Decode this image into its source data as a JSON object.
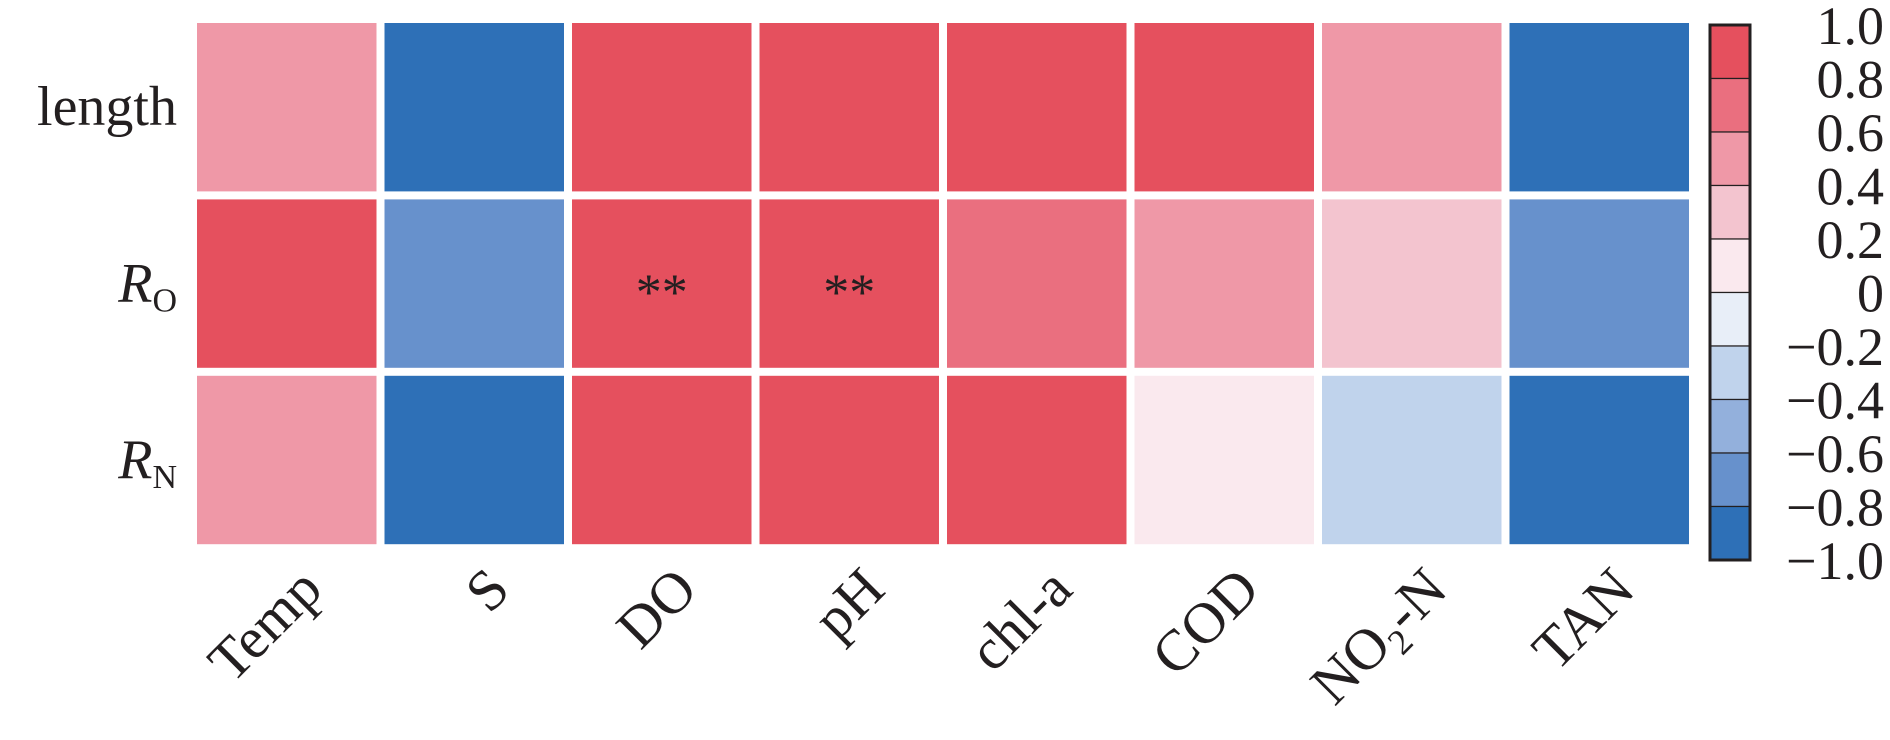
{
  "chart_data": {
    "type": "heatmap",
    "title": "",
    "xlabel": "",
    "ylabel": "",
    "rows": [
      {
        "label": "length",
        "sub": ""
      },
      {
        "label": "R",
        "sub": "O"
      },
      {
        "label": "R",
        "sub": "N"
      }
    ],
    "columns": [
      {
        "label": "Temp"
      },
      {
        "label": "S"
      },
      {
        "label": "DO"
      },
      {
        "label": "pH"
      },
      {
        "label": "chl-a"
      },
      {
        "label": "COD"
      },
      {
        "label": "NO2-N",
        "parts": [
          "NO",
          "2",
          "-N"
        ]
      },
      {
        "label": "TAN"
      }
    ],
    "values": [
      [
        0.5,
        -1.0,
        1.0,
        1.0,
        1.0,
        1.0,
        0.5,
        -1.0
      ],
      [
        1.0,
        -0.7,
        1.0,
        1.0,
        0.7,
        0.5,
        0.3,
        -0.7
      ],
      [
        0.5,
        -1.0,
        1.0,
        1.0,
        1.0,
        0.1,
        -0.3,
        -1.0
      ]
    ],
    "significance": [
      [
        "",
        "",
        "",
        "",
        "",
        "",
        "",
        ""
      ],
      [
        "",
        "",
        "**",
        "**",
        "",
        "",
        "",
        ""
      ],
      [
        "",
        "",
        "",
        "",
        "",
        "",
        "",
        ""
      ]
    ],
    "colorbar": {
      "range": [
        -1.0,
        1.0
      ],
      "tick_labels": [
        "1.0",
        "0.8",
        "0.6",
        "0.4",
        "0.2",
        "0",
        "−0.2",
        "−0.4",
        "−0.6",
        "−0.8",
        "−1.0"
      ],
      "bands": [
        "#e5505e",
        "#ea6f7f",
        "#ef98a7",
        "#f3c4cf",
        "#fae9ee",
        "#e8eef8",
        "#c0d3ec",
        "#93b0dc",
        "#6791cc",
        "#2e70b7"
      ]
    }
  }
}
